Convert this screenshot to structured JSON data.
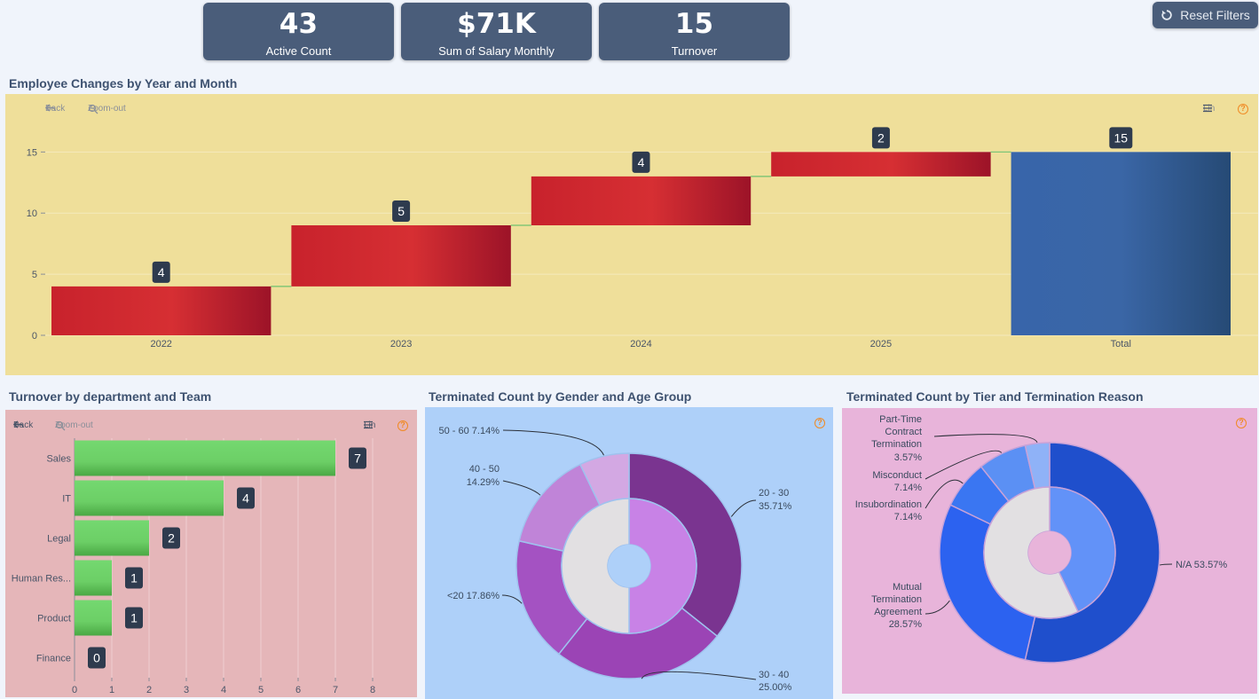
{
  "kpis": [
    {
      "value": "43",
      "label": "Active Count"
    },
    {
      "value": "$71K",
      "label": "Sum of Salary Monthly"
    },
    {
      "value": "15",
      "label": "Turnover"
    }
  ],
  "reset_button": {
    "label": "Reset Filters",
    "icon": "reset-icon"
  },
  "toolbar": {
    "back": "Back",
    "zoom_out": "Zoom-out",
    "scale": "Lin",
    "help": "?"
  },
  "waterfall": {
    "title": "Employee Changes by Year and Month",
    "bg_color": "#efdf9a",
    "chart_data": {
      "type": "waterfall",
      "categories": [
        "2022",
        "2023",
        "2024",
        "2025",
        "Total"
      ],
      "values": [
        4,
        5,
        4,
        2,
        15
      ],
      "total_index": 4,
      "ylim": [
        0,
        18
      ],
      "yticks": [
        0,
        5,
        10,
        15
      ],
      "colors": {
        "change": "#c8222c",
        "total": "#35609a",
        "connector": "#6fc26f"
      }
    }
  },
  "turnover_dept": {
    "title": "Turnover by department and Team",
    "bg_color": "#e5b6b9",
    "chart_data": {
      "type": "bar",
      "orientation": "horizontal",
      "categories": [
        "Sales",
        "IT",
        "Legal",
        "Human Res...",
        "Product",
        "Finance"
      ],
      "values": [
        7,
        4,
        2,
        1,
        1,
        0
      ],
      "xlim": [
        0,
        8
      ],
      "xticks": [
        0,
        1,
        2,
        3,
        4,
        5,
        6,
        7,
        8
      ],
      "bar_color": "#6fd36b"
    }
  },
  "gender_age": {
    "title": "Terminated Count by Gender and Age Group",
    "bg_color": "#aed0f9",
    "chart_data": {
      "type": "pie",
      "outer": [
        {
          "label": "20 - 30",
          "percent": "35.71%",
          "value": 35.71,
          "color": "#7a3490"
        },
        {
          "label": "30 - 40",
          "percent": "25.00%",
          "value": 25.0,
          "color": "#9b44b5"
        },
        {
          "label": "<20",
          "percent": "17.86%",
          "value": 17.86,
          "color": "#a452c2"
        },
        {
          "label": "40 - 50",
          "percent": "14.29%",
          "value": 14.29,
          "color": "#c084d8"
        },
        {
          "label": "50 - 60",
          "percent": "7.14%",
          "value": 7.14,
          "color": "#d3a8e3"
        }
      ],
      "inner": [
        {
          "value": 50,
          "color": "#c882e6"
        },
        {
          "value": 50,
          "color": "#e2e0e2"
        }
      ]
    }
  },
  "tier_reason": {
    "title": "Terminated Count by Tier and Termination Reason",
    "bg_color": "#e8b4da",
    "chart_data": {
      "type": "pie",
      "outer": [
        {
          "label": [
            "N/A 53.57%"
          ],
          "value": 53.57,
          "color": "#1f4fcc"
        },
        {
          "label": [
            "Mutual",
            "Termination",
            "Agreement",
            "28.57%"
          ],
          "value": 28.57,
          "color": "#2c62f0"
        },
        {
          "label": [
            "Insubordination",
            "7.14%"
          ],
          "value": 7.14,
          "color": "#3a76f2"
        },
        {
          "label": [
            "Misconduct",
            "7.14%"
          ],
          "value": 7.14,
          "color": "#5b90f4"
        },
        {
          "label": [
            "Part-Time",
            "Contract",
            "Termination",
            "3.57%"
          ],
          "value": 3.57,
          "color": "#8fb2f7"
        }
      ],
      "inner": [
        {
          "value": 42.86,
          "color": "#6292f8"
        },
        {
          "value": 57.14,
          "color": "#e2e0e2"
        }
      ]
    }
  }
}
